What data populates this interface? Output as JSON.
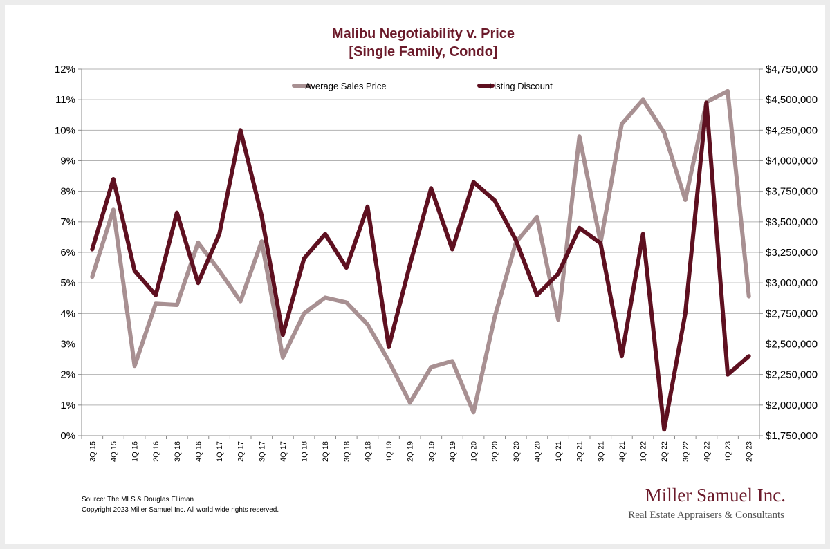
{
  "chart_data": {
    "type": "line",
    "title": "Malibu Negotiability v. Price",
    "subtitle": "[Single Family, Condo]",
    "categories": [
      "3Q 15",
      "4Q 15",
      "1Q 16",
      "2Q 16",
      "3Q 16",
      "4Q 16",
      "1Q 17",
      "2Q 17",
      "3Q 17",
      "4Q 17",
      "1Q 18",
      "2Q 18",
      "3Q 18",
      "4Q 18",
      "1Q 19",
      "2Q 19",
      "3Q 19",
      "4Q 19",
      "1Q 20",
      "2Q 20",
      "3Q 20",
      "4Q 20",
      "1Q 21",
      "2Q 21",
      "3Q 21",
      "4Q 21",
      "1Q 22",
      "2Q 22",
      "3Q 22",
      "4Q 22",
      "1Q 23",
      "2Q 23"
    ],
    "y_left": {
      "min": 0,
      "max": 0.12,
      "ticks": [
        "0%",
        "1%",
        "2%",
        "3%",
        "4%",
        "5%",
        "6%",
        "7%",
        "8%",
        "9%",
        "10%",
        "11%",
        "12%"
      ]
    },
    "y_right": {
      "min": 1750000,
      "max": 4750000,
      "ticks": [
        "$1,750,000",
        "$2,000,000",
        "$2,250,000",
        "$2,500,000",
        "$2,750,000",
        "$3,000,000",
        "$3,250,000",
        "$3,500,000",
        "$3,750,000",
        "$4,000,000",
        "$4,250,000",
        "$4,500,000",
        "$4,750,000"
      ]
    },
    "grid": true,
    "legend_position": "top",
    "series": [
      {
        "name": "Average Sales Price",
        "axis": "right",
        "color": "#a89092",
        "values": [
          3050000,
          3600000,
          2320000,
          2830000,
          2820000,
          3330000,
          3100000,
          2850000,
          3340000,
          2390000,
          2750000,
          2880000,
          2840000,
          2660000,
          2360000,
          2020000,
          2310000,
          2360000,
          1940000,
          2720000,
          3330000,
          3540000,
          2700000,
          4200000,
          3330000,
          4300000,
          4500000,
          4230000,
          3680000,
          4480000,
          4570000,
          2890000
        ]
      },
      {
        "name": "Listing Discount",
        "axis": "left",
        "color": "#5e1020",
        "values": [
          0.061,
          0.084,
          0.054,
          0.046,
          0.073,
          0.05,
          0.066,
          0.1,
          0.072,
          0.033,
          0.058,
          0.066,
          0.055,
          0.075,
          0.029,
          0.056,
          0.081,
          0.061,
          0.083,
          0.077,
          0.064,
          0.046,
          0.053,
          0.068,
          0.063,
          0.026,
          0.066,
          0.002,
          0.04,
          0.109,
          0.02,
          0.026
        ]
      }
    ]
  },
  "source_note": "Source: The MLS & Douglas Elliman",
  "copyright_note": "Copyright 2023 Miller Samuel Inc.  All world wide rights reserved.",
  "logo": {
    "name": "Miller Samuel Inc.",
    "tagline": "Real Estate Appraisers & Consultants"
  }
}
